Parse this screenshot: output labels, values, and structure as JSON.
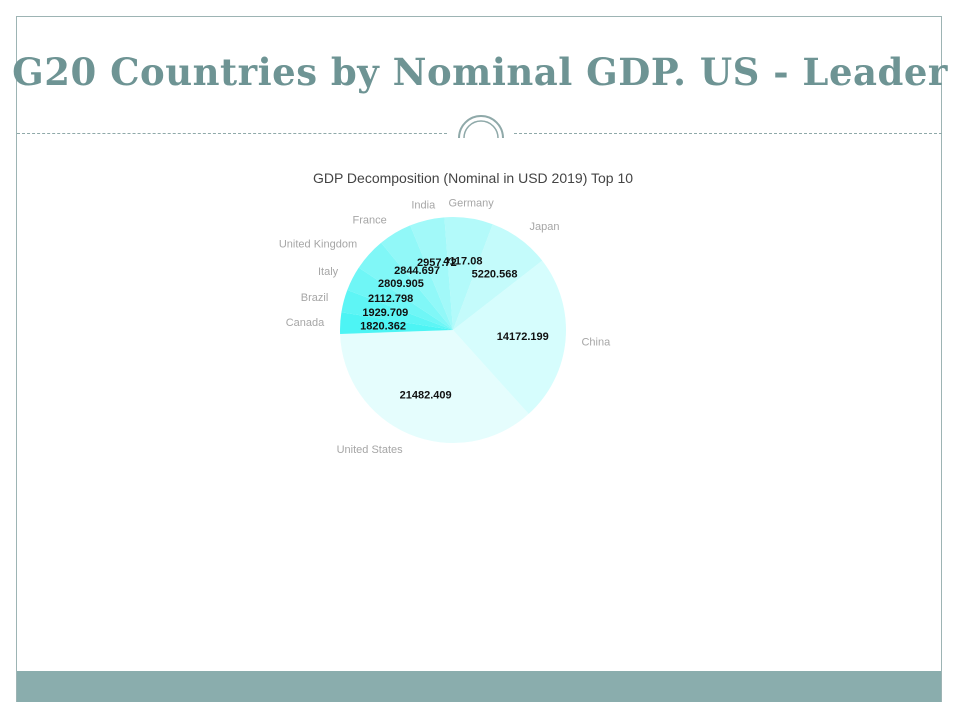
{
  "slide": {
    "title": "G20 Countries by Nominal GDP. US - Leader",
    "accent_color": "#6e9494",
    "footer_color": "#8aadad"
  },
  "chart_data": {
    "type": "pie",
    "title": "GDP Decomposition (Nominal in USD 2019) Top 10",
    "categories": [
      "United States",
      "China",
      "Japan",
      "Germany",
      "India",
      "France",
      "United Kingdom",
      "Italy",
      "Brazil",
      "Canada"
    ],
    "values": [
      21482.409,
      14172.199,
      5220.568,
      4117.08,
      2957.72,
      2844.697,
      2809.905,
      2112.798,
      1929.709,
      1820.362
    ],
    "value_labels": [
      "21482.409",
      "14172.199",
      "5220.568",
      "4117.08",
      "2957.72",
      "2844.697",
      "2809.905",
      "2112.798",
      "1929.709",
      "1820.362"
    ],
    "colors": [
      "#e5fdfd",
      "#d6fdfd",
      "#c4fbfb",
      "#b3fafa",
      "#a2f9f9",
      "#91f8f8",
      "#80f7f7",
      "#6ff6f6",
      "#5ef5f5",
      "#4df4f4"
    ],
    "legend": "none",
    "xlabel": "",
    "ylabel": ""
  }
}
